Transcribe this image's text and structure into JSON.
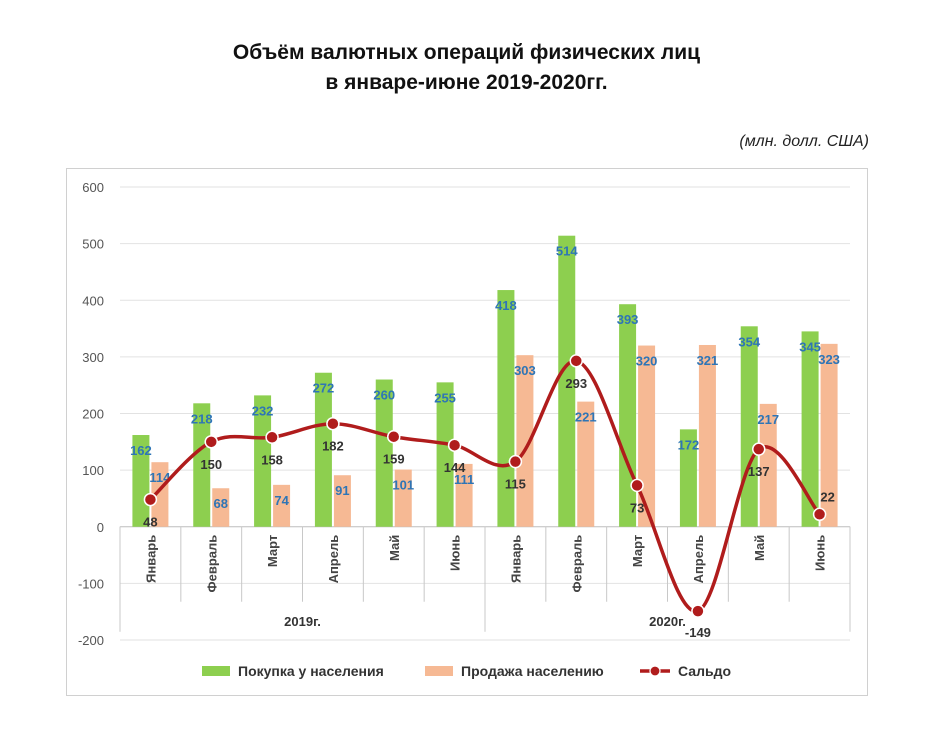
{
  "title_line1": "Объём валютных операций физических лиц",
  "title_line2": "в январе-июне 2019-2020гг.",
  "unit": "(млн. долл. США)",
  "chart_data": {
    "type": "bar",
    "groups": [
      {
        "label": "2019г.",
        "categories": [
          "Январь",
          "Февраль",
          "Март",
          "Апрель",
          "Май",
          "Июнь"
        ]
      },
      {
        "label": "2020г.",
        "categories": [
          "Январь",
          "Февраль",
          "Март",
          "Апрель",
          "Май",
          "Июнь"
        ]
      }
    ],
    "categories": [
      "Январь",
      "Февраль",
      "Март",
      "Апрель",
      "Май",
      "Июнь",
      "Январь",
      "Февраль",
      "Март",
      "Апрель",
      "Май",
      "Июнь"
    ],
    "series": [
      {
        "name": "Покупка у населения",
        "type": "bar",
        "color": "#8dcf4f",
        "values": [
          162,
          218,
          232,
          272,
          260,
          255,
          418,
          514,
          393,
          172,
          354,
          345
        ]
      },
      {
        "name": "Продажа населению",
        "type": "bar",
        "color": "#f6b994",
        "values": [
          114,
          68,
          74,
          91,
          101,
          111,
          303,
          221,
          320,
          321,
          217,
          323
        ]
      },
      {
        "name": "Сальдо",
        "type": "line",
        "color": "#b01c1c",
        "values": [
          48,
          150,
          158,
          182,
          159,
          144,
          115,
          293,
          73,
          -149,
          137,
          22
        ]
      }
    ],
    "ylim": [
      -200,
      600
    ],
    "yticks": [
      -200,
      -100,
      0,
      100,
      200,
      300,
      400,
      500,
      600
    ],
    "grid": true,
    "legend": "bottom",
    "label_colors": {
      "bars": "#2e75b6",
      "line": "#333333"
    }
  }
}
